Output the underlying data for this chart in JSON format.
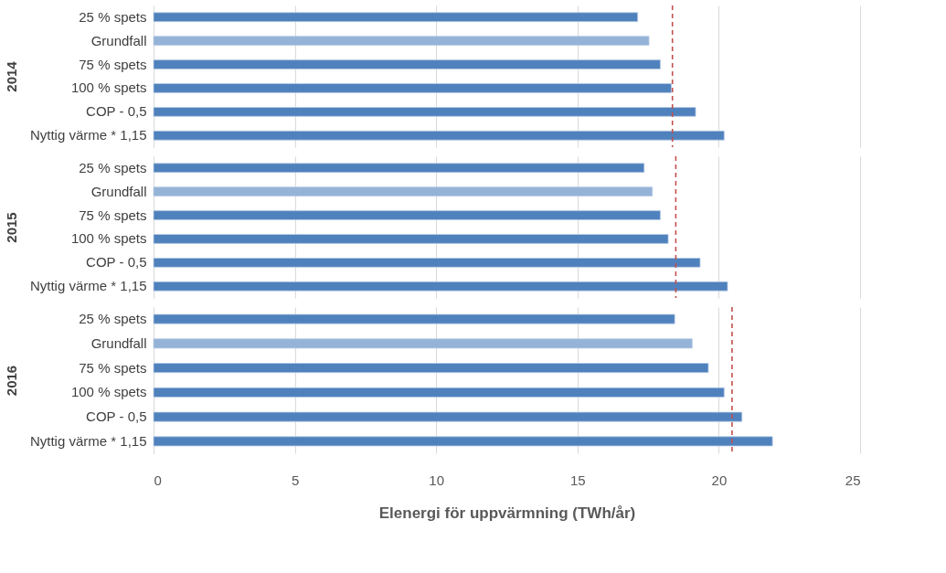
{
  "chart_data": [
    {
      "type": "bar",
      "orientation": "horizontal",
      "ylabel": "2014",
      "categories": [
        "25 % spets",
        "Grundfall",
        "75 % spets",
        "100 % spets",
        "COP - 0,5",
        "Nyttig värme * 1,15"
      ],
      "values": [
        17.13,
        17.53,
        17.93,
        18.32,
        19.18,
        20.19
      ],
      "colors": [
        "#4f81bd",
        "#95b3d7",
        "#4f81bd",
        "#4f81bd",
        "#4f81bd",
        "#4f81bd"
      ],
      "xlim": [
        0,
        25
      ],
      "xticks": [
        0,
        5,
        10,
        15,
        20,
        25
      ],
      "grid": "x",
      "tick_labels": "y",
      "ref_lines": [
        {
          "axis": "x",
          "value": 18.36,
          "color": "#c0504d",
          "line_style": "dashed"
        }
      ]
    },
    {
      "type": "bar",
      "orientation": "horizontal",
      "ylabel": "2015",
      "categories": [
        "25 % spets",
        "Grundfall",
        "75 % spets",
        "100 % spets",
        "COP - 0,5",
        "Nyttig värme * 1,15"
      ],
      "values": [
        17.36,
        17.65,
        17.93,
        18.21,
        19.34,
        20.31
      ],
      "colors": [
        "#4f81bd",
        "#95b3d7",
        "#4f81bd",
        "#4f81bd",
        "#4f81bd",
        "#4f81bd"
      ],
      "xlim": [
        0,
        25
      ],
      "xticks": [
        0,
        5,
        10,
        15,
        20,
        25
      ],
      "grid": "x",
      "tick_labels": "y",
      "ref_lines": [
        {
          "axis": "x",
          "value": 18.48,
          "color": "#c0504d",
          "line_style": "dashed"
        }
      ]
    },
    {
      "type": "bar",
      "orientation": "horizontal",
      "ylabel": "2016",
      "xlabel": "Elenergi för uppvärmning (TWh/år)",
      "categories": [
        "25 % spets",
        "Grundfall",
        "75 % spets",
        "100 % spets",
        "COP - 0,5",
        "Nyttig värme * 1,15"
      ],
      "values": [
        18.44,
        19.06,
        19.63,
        20.19,
        20.82,
        21.9
      ],
      "colors": [
        "#4f81bd",
        "#95b3d7",
        "#4f81bd",
        "#4f81bd",
        "#4f81bd",
        "#4f81bd"
      ],
      "xlim": [
        0,
        25
      ],
      "xticks": [
        0,
        5,
        10,
        15,
        20,
        25
      ],
      "grid": "x",
      "ref_lines": [
        {
          "axis": "x",
          "value": 20.47,
          "color": "#c0504d",
          "line_style": "dashed"
        }
      ]
    }
  ]
}
